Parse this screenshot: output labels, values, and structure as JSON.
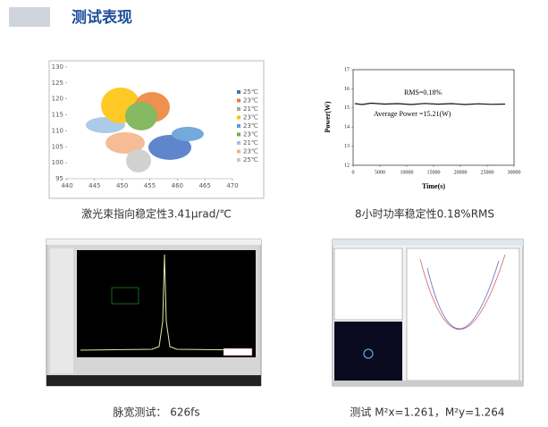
{
  "header": {
    "title": "测试表现"
  },
  "panels": [
    {
      "caption": "激光束指向稳定性3.41μrad/℃",
      "chart": {
        "type": "scatter",
        "xlim": [
          440,
          470
        ],
        "xticks": [
          440,
          445,
          450,
          455,
          460,
          465,
          470
        ],
        "ylim": [
          95,
          130
        ],
        "yticks": [
          95,
          100,
          105,
          110,
          115,
          120,
          125,
          130
        ],
        "legend": [
          {
            "name": "25℃",
            "color": "#4472c4"
          },
          {
            "name": "23℃",
            "color": "#ed7d31"
          },
          {
            "name": "21℃",
            "color": "#a5a5a5"
          },
          {
            "name": "23℃",
            "color": "#ffc000"
          },
          {
            "name": "23℃",
            "color": "#5b9bd5"
          },
          {
            "name": "23℃",
            "color": "#70ad47"
          },
          {
            "name": "21℃",
            "color": "#9dc3e6"
          },
          {
            "name": "23℃",
            "color": "#f4b183"
          },
          {
            "name": "25℃",
            "color": "#c9c9c9"
          }
        ]
      }
    },
    {
      "caption": "8小时功率稳定性0.18%RMS",
      "chart": {
        "type": "line",
        "xlabel": "Time(s)",
        "ylabel": "Power(W)",
        "xlim": [
          0,
          30000
        ],
        "xticks": [
          0,
          5000,
          10000,
          15000,
          20000,
          25000,
          30000
        ],
        "ylim": [
          12,
          17
        ],
        "yticks": [
          12,
          13,
          14,
          15,
          16,
          17
        ],
        "annotations": [
          "RMS=0.18%",
          "Average  Power =15.21(W)"
        ]
      }
    },
    {
      "caption": "脉宽测试：  626fs"
    },
    {
      "caption": "测试 M²x=1.261，M²y=1.264"
    }
  ]
}
